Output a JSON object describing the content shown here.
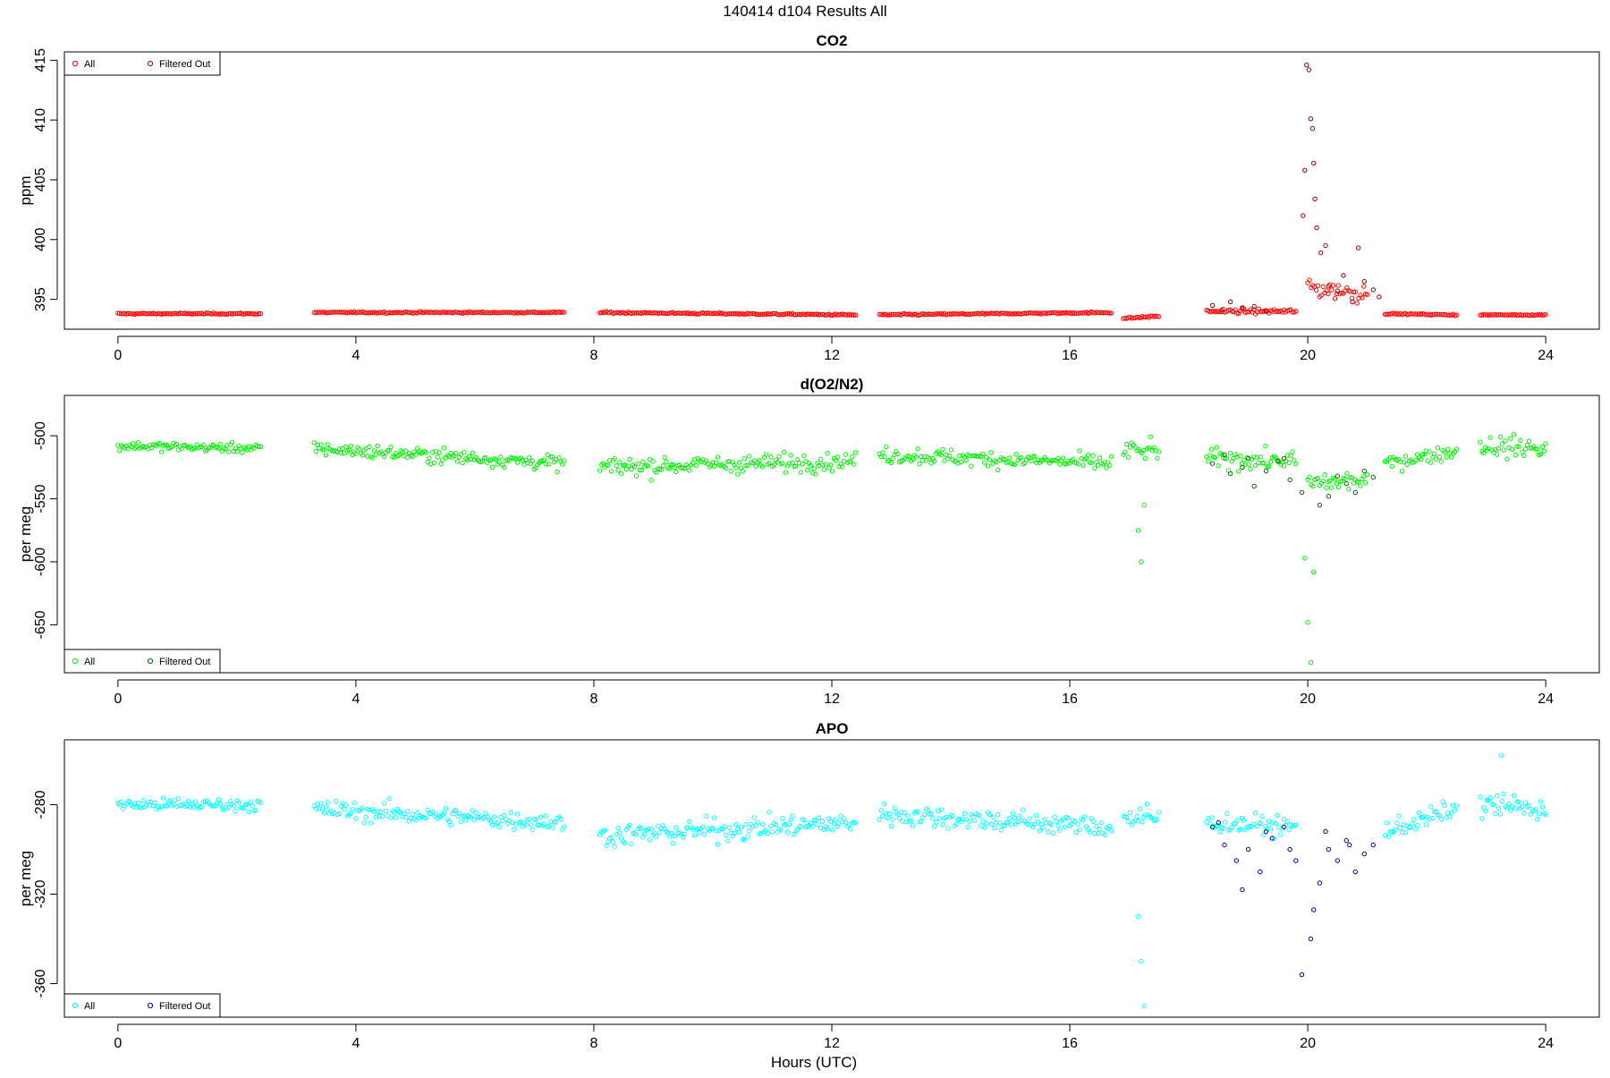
{
  "figure": {
    "title": "140414   d104   Results All",
    "xlabel": "Hours (UTC)"
  },
  "colors": {
    "co2_all": "#ff0000",
    "co2_filtered": "#8b0000",
    "o2n2_all": "#00ee00",
    "o2n2_filtered": "#006400",
    "apo_all": "#00ffff",
    "apo_filtered": "#00008b"
  },
  "chart_data": [
    {
      "type": "scatter",
      "title": "CO2",
      "xlabel": "",
      "ylabel": "ppm",
      "xlim": [
        -0.9,
        24.9
      ],
      "ylim": [
        392.5,
        415.7
      ],
      "xticks": [
        0,
        4,
        8,
        12,
        16,
        20,
        24
      ],
      "yticks": [
        395,
        400,
        405,
        410,
        415
      ],
      "grid": false,
      "legend_position": "top-left",
      "legend": [
        "All",
        "Filtered Out"
      ],
      "series": [
        {
          "name": "All",
          "marker": "circle",
          "color_key": "co2_all",
          "segments": [
            {
              "x": [
                0.0,
                2.4
              ],
              "y": [
                393.8,
                393.8
              ],
              "noise": 0.08
            },
            {
              "x": [
                3.3,
                7.5
              ],
              "y": [
                393.9,
                393.9
              ],
              "noise": 0.08
            },
            {
              "x": [
                8.1,
                12.4
              ],
              "y": [
                393.9,
                393.7
              ],
              "noise": 0.1
            },
            {
              "x": [
                12.8,
                16.7
              ],
              "y": [
                393.7,
                393.9
              ],
              "noise": 0.1
            },
            {
              "x": [
                16.9,
                17.5
              ],
              "y": [
                393.4,
                393.6
              ],
              "noise": 0.12
            },
            {
              "x": [
                18.3,
                19.8
              ],
              "y": [
                394.0,
                394.0
              ],
              "noise": 0.25
            },
            {
              "x": [
                20.0,
                21.0
              ],
              "y": [
                396.0,
                395.5
              ],
              "noise": 1.2
            },
            {
              "x": [
                21.3,
                22.5
              ],
              "y": [
                393.8,
                393.7
              ],
              "noise": 0.08
            },
            {
              "x": [
                22.9,
                24.0
              ],
              "y": [
                393.7,
                393.7
              ],
              "noise": 0.08
            }
          ]
        },
        {
          "name": "Filtered Out",
          "marker": "circle",
          "color_key": "co2_filtered",
          "x": [
            19.98,
            20.02,
            20.05,
            19.95,
            20.1,
            20.08,
            19.92,
            20.12,
            20.15,
            20.22,
            20.3,
            20.35,
            20.5,
            20.6,
            20.75,
            20.85,
            20.95,
            21.1,
            21.2,
            18.4,
            18.55,
            18.7,
            18.9,
            19.1,
            19.3
          ],
          "y": [
            414.6,
            414.2,
            410.1,
            405.8,
            406.4,
            409.3,
            402.0,
            403.4,
            401.0,
            398.9,
            399.5,
            396.1,
            395.7,
            397.0,
            394.8,
            399.3,
            396.5,
            395.8,
            395.2,
            394.5,
            394.1,
            394.8,
            394.3,
            394.4,
            394.0
          ]
        }
      ]
    },
    {
      "type": "scatter",
      "title": "d(O2/N2)",
      "xlabel": "",
      "ylabel": "per meg",
      "xlim": [
        -0.9,
        24.9
      ],
      "ylim": [
        -688,
        -468
      ],
      "xticks": [
        0,
        4,
        8,
        12,
        16,
        20,
        24
      ],
      "yticks": [
        -650,
        -600,
        -550,
        -500
      ],
      "grid": false,
      "legend_position": "bottom-left",
      "legend": [
        "All",
        "Filtered Out"
      ],
      "series": [
        {
          "name": "All",
          "marker": "circle",
          "color_key": "o2n2_all",
          "segments": [
            {
              "x": [
                0.0,
                2.4
              ],
              "y": [
                -508,
                -510
              ],
              "noise": 5
            },
            {
              "x": [
                3.3,
                7.5
              ],
              "y": [
                -510,
                -522
              ],
              "noise": 8
            },
            {
              "x": [
                8.1,
                12.4
              ],
              "y": [
                -525,
                -520
              ],
              "noise": 10
            },
            {
              "x": [
                12.8,
                16.7
              ],
              "y": [
                -515,
                -522
              ],
              "noise": 9
            },
            {
              "x": [
                16.9,
                17.5
              ],
              "y": [
                -512,
                -512
              ],
              "noise": 12
            },
            {
              "x": [
                18.3,
                19.8
              ],
              "y": [
                -518,
                -520
              ],
              "noise": 10
            },
            {
              "x": [
                20.0,
                21.0
              ],
              "y": [
                -538,
                -535
              ],
              "noise": 12
            },
            {
              "x": [
                21.3,
                22.5
              ],
              "y": [
                -522,
                -512
              ],
              "noise": 8
            },
            {
              "x": [
                22.9,
                24.0
              ],
              "y": [
                -508,
                -510
              ],
              "noise": 12
            }
          ],
          "extra_x": [
            17.15,
            17.2,
            17.25,
            19.95,
            20.0,
            20.05,
            20.1
          ],
          "extra_y": [
            -575,
            -600,
            -555,
            -597,
            -648,
            -680,
            -608
          ]
        },
        {
          "name": "Filtered Out",
          "marker": "circle",
          "color_key": "o2n2_filtered",
          "x": [
            18.4,
            18.7,
            18.9,
            19.1,
            19.3,
            19.5,
            19.7,
            19.9,
            20.2,
            20.35,
            20.5,
            20.65,
            20.8,
            20.95,
            21.1,
            18.6,
            19.0,
            19.6
          ],
          "y": [
            -522,
            -530,
            -525,
            -540,
            -528,
            -520,
            -535,
            -545,
            -555,
            -548,
            -532,
            -538,
            -545,
            -528,
            -533,
            -515,
            -518,
            -518
          ]
        }
      ]
    },
    {
      "type": "scatter",
      "title": "APO",
      "xlabel": "Hours (UTC)",
      "ylabel": "per meg",
      "xlim": [
        -0.9,
        24.9
      ],
      "ylim": [
        -375,
        -251
      ],
      "xticks": [
        0,
        4,
        8,
        12,
        16,
        20,
        24
      ],
      "yticks": [
        -360,
        -320,
        -280
      ],
      "grid": false,
      "legend_position": "bottom-left",
      "legend": [
        "All",
        "Filtered Out"
      ],
      "series": [
        {
          "name": "All",
          "marker": "circle",
          "color_key": "apo_all",
          "segments": [
            {
              "x": [
                0.0,
                2.4
              ],
              "y": [
                -280,
                -280
              ],
              "noise": 4
            },
            {
              "x": [
                3.3,
                7.5
              ],
              "y": [
                -282,
                -288
              ],
              "noise": 6
            },
            {
              "x": [
                8.1,
                12.4
              ],
              "y": [
                -294,
                -288
              ],
              "noise": 7
            },
            {
              "x": [
                12.8,
                16.7
              ],
              "y": [
                -284,
                -290
              ],
              "noise": 7
            },
            {
              "x": [
                16.9,
                17.5
              ],
              "y": [
                -286,
                -286
              ],
              "noise": 8
            },
            {
              "x": [
                18.3,
                19.8
              ],
              "y": [
                -288,
                -290
              ],
              "noise": 6
            },
            {
              "x": [
                21.3,
                22.5
              ],
              "y": [
                -292,
                -282
              ],
              "noise": 6
            },
            {
              "x": [
                22.9,
                24.0
              ],
              "y": [
                -280,
                -282
              ],
              "noise": 8
            }
          ],
          "extra_x": [
            17.15,
            17.2,
            17.25,
            23.25
          ],
          "extra_y": [
            -330,
            -350,
            -370,
            -258
          ]
        },
        {
          "name": "Filtered Out",
          "marker": "circle",
          "color_key": "apo_filtered",
          "x": [
            18.4,
            18.6,
            18.8,
            19.0,
            19.2,
            19.4,
            19.6,
            19.8,
            19.9,
            20.05,
            20.1,
            20.2,
            20.35,
            20.5,
            20.65,
            20.8,
            20.95,
            21.1,
            18.5,
            18.9,
            19.3,
            19.7,
            20.3,
            20.7
          ],
          "y": [
            -290,
            -298,
            -305,
            -300,
            -310,
            -295,
            -290,
            -305,
            -356,
            -340,
            -327,
            -315,
            -300,
            -305,
            -296,
            -310,
            -302,
            -298,
            -288,
            -318,
            -292,
            -300,
            -292,
            -298
          ]
        }
      ]
    }
  ]
}
